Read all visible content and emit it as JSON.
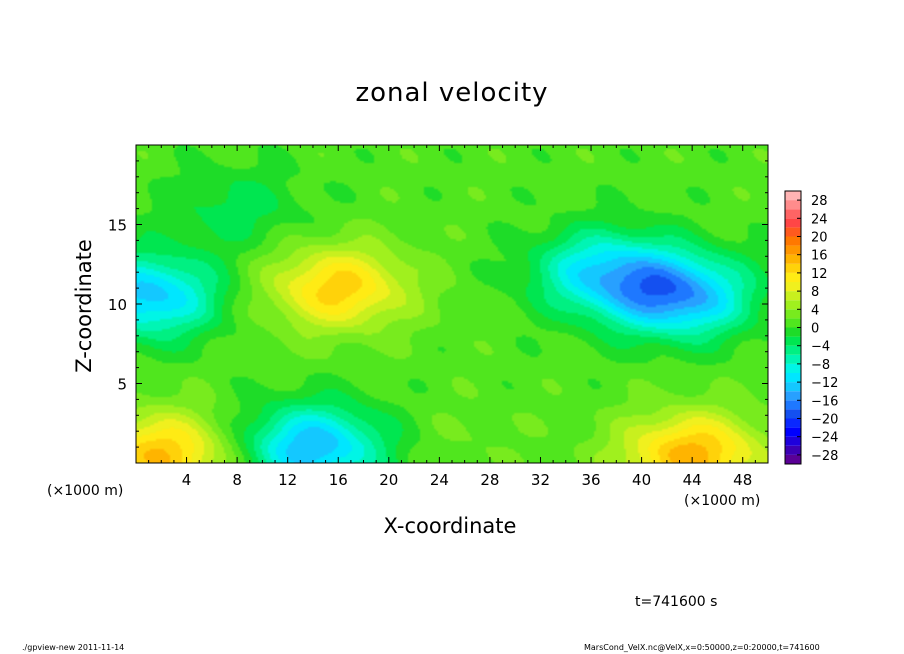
{
  "chart_data": {
    "type": "heatmap",
    "title": "zonal velocity",
    "xlabel": "X-coordinate",
    "ylabel": "Z-coordinate",
    "x_unit_left": "(×1000 m)",
    "x_unit_right": "(×1000 m)",
    "xlim": [
      0,
      50
    ],
    "ylim": [
      0,
      20
    ],
    "x_ticks": [
      4,
      8,
      12,
      16,
      20,
      24,
      28,
      32,
      36,
      40,
      44,
      48
    ],
    "y_ticks": [
      5,
      10,
      15
    ],
    "colorbar": {
      "levels": [
        -30,
        -28,
        -26,
        -24,
        -22,
        -20,
        -18,
        -16,
        -14,
        -12,
        -10,
        -8,
        -6,
        -4,
        -2,
        0,
        2,
        4,
        6,
        8,
        10,
        12,
        14,
        16,
        18,
        20,
        22,
        24,
        26,
        28,
        30
      ],
      "labels": [
        "28",
        "24",
        "20",
        "16",
        "12",
        "8",
        "4",
        "0",
        "−4",
        "−8",
        "−12",
        "−16",
        "−20",
        "−24",
        "−28"
      ],
      "label_values": [
        28,
        24,
        20,
        16,
        12,
        8,
        4,
        0,
        -4,
        -8,
        -12,
        -16,
        -20,
        -24,
        -28
      ],
      "colors": [
        "#5a0096",
        "#3c00b4",
        "#1e00dc",
        "#0000ff",
        "#0a28ff",
        "#1450f0",
        "#1e78ff",
        "#28a0ff",
        "#14c8ff",
        "#00e6ff",
        "#00f5e6",
        "#00f5b4",
        "#00f082",
        "#00e650",
        "#1edc28",
        "#50e61e",
        "#78eb1e",
        "#a0f01e",
        "#c8f01e",
        "#f0f01e",
        "#ffeb14",
        "#ffd20a",
        "#ffb400",
        "#ff9600",
        "#ff7800",
        "#ff5a1e",
        "#ff4646",
        "#ff6464",
        "#ff8c8c",
        "#ffb4b4"
      ]
    },
    "field_features": [
      {
        "x": 1,
        "z": 10.5,
        "value": -13
      },
      {
        "x": 14,
        "z": 1,
        "value": -14
      },
      {
        "x": 43,
        "z": 10.5,
        "value": -15
      },
      {
        "x": 37,
        "z": 12,
        "value": -11
      },
      {
        "x": 16,
        "z": 11,
        "value": 13
      },
      {
        "x": 2,
        "z": 0.5,
        "value": 14
      },
      {
        "x": 44,
        "z": 0.5,
        "value": 15
      },
      {
        "x": 26,
        "z": 1.5,
        "value": 2
      },
      {
        "x": 8,
        "z": 16,
        "value": -3
      },
      {
        "x": 28,
        "z": 10,
        "value": 1
      }
    ],
    "time_label": "t=741600 s"
  },
  "footer": {
    "left": "./gpview-new  2011-11-14",
    "right": "MarsCond_VelX.nc@VelX,x=0:50000,z=0:20000,t=741600"
  }
}
